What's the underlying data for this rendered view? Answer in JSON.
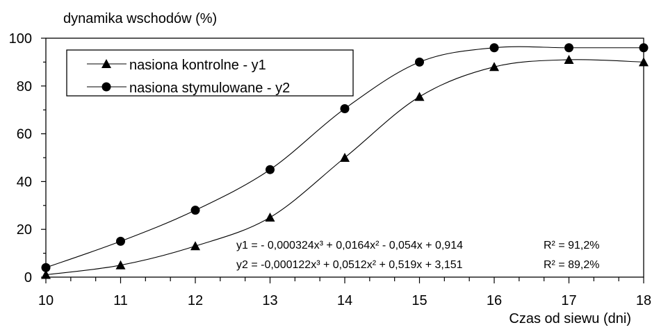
{
  "chart_data": {
    "type": "line",
    "ylabel": "dynamika wschodów (%)",
    "xlabel": "Czas od siewu (dni)",
    "xlim": [
      10,
      18
    ],
    "ylim": [
      0,
      100
    ],
    "x_ticks": [
      10,
      11,
      12,
      13,
      14,
      15,
      16,
      17,
      18
    ],
    "y_ticks": [
      0,
      20,
      40,
      60,
      80,
      100
    ],
    "grid": false,
    "legend_position": "top-left",
    "x": [
      10,
      11,
      12,
      13,
      14,
      15,
      16,
      17,
      18
    ],
    "series": [
      {
        "name": "nasiona kontrolne  - y1",
        "marker": "triangle",
        "values": [
          1,
          5,
          13,
          25,
          50,
          75.5,
          88,
          91,
          90
        ]
      },
      {
        "name": "nasiona stymulowane  - y2",
        "marker": "circle",
        "values": [
          4,
          15,
          28,
          45,
          70.5,
          90,
          96,
          96,
          96
        ]
      }
    ],
    "annotations": [
      {
        "equation": "y1 = - 0,000324x³ + 0,0164x² - 0,054x + 0,914",
        "r2": "R² = 91,2%"
      },
      {
        "equation": "y2 =  -0,000122x³ + 0,0512x² + 0,519x + 3,151",
        "r2": "R² = 89,2%"
      }
    ],
    "colors": {
      "line": "#000000",
      "marker": "#000000",
      "background": "#ffffff"
    }
  }
}
